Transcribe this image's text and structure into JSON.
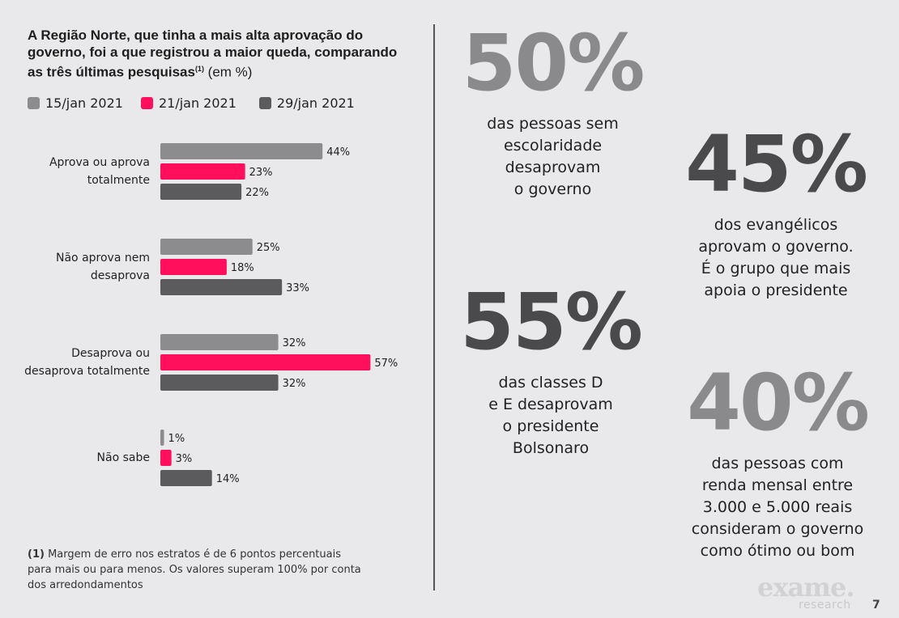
{
  "title": {
    "text": "A Região Norte, que tinha a mais alta aprovação do governo, foi a que registrou a maior queda, comparando as três últimas pesquisas",
    "sup": "(1)",
    "unit": "(em %)"
  },
  "colors": {
    "series1": "#8c8c8e",
    "series2": "#ff0f5c",
    "series3": "#5b5b5d",
    "stat_light": "#8a8a8c",
    "stat_dark": "#4a4a4c"
  },
  "chart_data": {
    "type": "bar",
    "orientation": "horizontal",
    "categories": [
      [
        "Aprova ou aprova",
        "totalmente"
      ],
      [
        "Não aprova nem",
        "desaprova"
      ],
      [
        "Desaprova ou",
        "desaprova totalmente"
      ],
      [
        "Não sabe"
      ]
    ],
    "series": [
      {
        "name": "15/jan 2021",
        "values": [
          44,
          25,
          32,
          1
        ]
      },
      {
        "name": "21/jan 2021",
        "values": [
          23,
          18,
          57,
          3
        ]
      },
      {
        "name": "29/jan 2021",
        "values": [
          22,
          33,
          32,
          14
        ]
      }
    ],
    "value_suffix": "%",
    "xlim": [
      0,
      57
    ],
    "legend": "top",
    "grid": false
  },
  "footnote": {
    "marker": "(1)",
    "text": "Margem de erro nos estratos é de 6 pontos percentuais para mais ou para menos. Os valores superam 100% por conta dos arredondamentos"
  },
  "stats": [
    {
      "value": "50%",
      "lines": [
        "das pessoas sem",
        "escolaridade",
        "desaprovam",
        "o governo"
      ]
    },
    {
      "value": "45%",
      "lines": [
        "dos evangélicos",
        "aprovam o governo.",
        "É o grupo que mais",
        "apoia o presidente"
      ]
    },
    {
      "value": "55%",
      "lines": [
        "das classes D",
        "e E desaprovam",
        "o presidente",
        "Bolsonaro"
      ]
    },
    {
      "value": "40%",
      "lines": [
        "das pessoas com",
        "renda mensal entre",
        "3.000 e 5.000 reais",
        "consideram o governo",
        "como ótimo ou bom"
      ]
    }
  ],
  "brand": {
    "logo": "exame.",
    "sub": "research"
  },
  "page_number": "7"
}
